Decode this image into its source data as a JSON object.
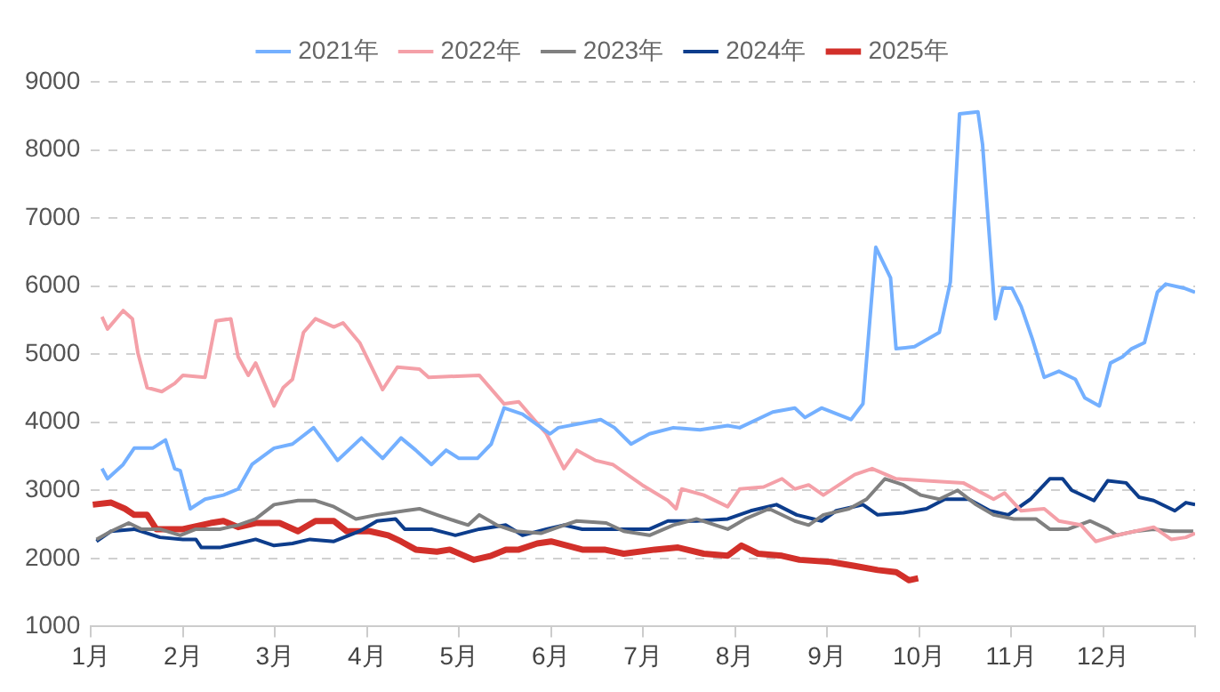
{
  "chart_data": {
    "type": "line",
    "xlim": [
      1,
      13
    ],
    "xticks": [
      {
        "value": 1,
        "label": "1月"
      },
      {
        "value": 2,
        "label": "2月"
      },
      {
        "value": 3,
        "label": "3月"
      },
      {
        "value": 4,
        "label": "4月"
      },
      {
        "value": 5,
        "label": "5月"
      },
      {
        "value": 6,
        "label": "6月"
      },
      {
        "value": 7,
        "label": "7月"
      },
      {
        "value": 8,
        "label": "8月"
      },
      {
        "value": 9,
        "label": "9月"
      },
      {
        "value": 10,
        "label": "10月"
      },
      {
        "value": 11,
        "label": "11月"
      },
      {
        "value": 12,
        "label": "12月"
      },
      {
        "value": 13,
        "label": null
      }
    ],
    "ylim": [
      1000,
      9000
    ],
    "yticks": [
      1000,
      2000,
      3000,
      4000,
      5000,
      6000,
      7000,
      8000,
      9000
    ],
    "grid": "y",
    "legend": "top",
    "marker": "none",
    "series": [
      {
        "name": "2021年",
        "color": "#74b0ff",
        "x": [
          1.12,
          1.18,
          1.35,
          1.47,
          1.67,
          1.81,
          1.91,
          1.97,
          2.08,
          2.24,
          2.44,
          2.6,
          2.75,
          2.99,
          3.19,
          3.42,
          3.52,
          3.68,
          3.94,
          4.17,
          4.37,
          4.53,
          4.7,
          4.86,
          5.0,
          5.2,
          5.35,
          5.49,
          5.69,
          5.99,
          6.08,
          6.54,
          6.69,
          6.87,
          7.07,
          7.33,
          7.62,
          7.92,
          8.05,
          8.41,
          8.65,
          8.76,
          8.94,
          9.26,
          9.39,
          9.53,
          9.69,
          9.75,
          9.95,
          10.22,
          10.34,
          10.44,
          10.64,
          10.69,
          10.83,
          10.91,
          11.01,
          11.11,
          11.23,
          11.36,
          11.52,
          11.7,
          11.8,
          11.96,
          12.08,
          12.21,
          12.31,
          12.45,
          12.59,
          12.68,
          12.88,
          13.0
        ],
        "values": [
          3320,
          3170,
          3380,
          3620,
          3620,
          3740,
          3320,
          3290,
          2730,
          2870,
          2930,
          3020,
          3380,
          3620,
          3680,
          3920,
          3740,
          3440,
          3770,
          3470,
          3770,
          3590,
          3380,
          3590,
          3470,
          3470,
          3680,
          4210,
          4120,
          3830,
          3920,
          4040,
          3920,
          3680,
          3830,
          3920,
          3890,
          3950,
          3920,
          4150,
          4210,
          4070,
          4210,
          4040,
          4270,
          6570,
          6120,
          5080,
          5110,
          5320,
          6060,
          8530,
          8560,
          8080,
          5520,
          5970,
          5970,
          5700,
          5230,
          4660,
          4750,
          4630,
          4360,
          4240,
          4870,
          4960,
          5080,
          5170,
          5910,
          6030,
          5970,
          5910
        ]
      },
      {
        "name": "2022年",
        "color": "#f4a0a8",
        "x": [
          1.12,
          1.18,
          1.35,
          1.45,
          1.51,
          1.61,
          1.77,
          1.91,
          2.0,
          2.24,
          2.36,
          2.52,
          2.6,
          2.71,
          2.79,
          2.99,
          3.09,
          3.19,
          3.31,
          3.44,
          3.64,
          3.74,
          3.92,
          4.17,
          4.33,
          4.57,
          4.67,
          5.22,
          5.49,
          5.65,
          5.95,
          6.14,
          6.28,
          6.48,
          6.67,
          6.99,
          7.27,
          7.36,
          7.42,
          7.66,
          7.92,
          8.05,
          8.31,
          8.51,
          8.65,
          8.8,
          8.96,
          9.3,
          9.49,
          9.75,
          10.08,
          10.48,
          10.81,
          10.93,
          11.11,
          11.36,
          11.52,
          11.76,
          11.92,
          12.15,
          12.35,
          12.55,
          12.74,
          12.9,
          13.0
        ],
        "values": [
          5550,
          5370,
          5640,
          5520,
          5020,
          4510,
          4450,
          4570,
          4690,
          4660,
          5490,
          5520,
          4960,
          4690,
          4870,
          4240,
          4510,
          4630,
          5320,
          5520,
          5400,
          5460,
          5170,
          4480,
          4810,
          4780,
          4660,
          4690,
          4270,
          4300,
          3830,
          3320,
          3590,
          3440,
          3380,
          3080,
          2850,
          2730,
          3020,
          2930,
          2760,
          3020,
          3050,
          3170,
          3020,
          3080,
          2930,
          3230,
          3320,
          3170,
          3140,
          3110,
          2870,
          2960,
          2700,
          2730,
          2550,
          2490,
          2250,
          2340,
          2400,
          2460,
          2280,
          2310,
          2370
        ]
      },
      {
        "name": "2023年",
        "color": "#808080",
        "x": [
          1.06,
          1.22,
          1.41,
          1.55,
          1.75,
          1.97,
          2.14,
          2.4,
          2.6,
          2.79,
          2.99,
          3.25,
          3.44,
          3.64,
          3.88,
          4.11,
          4.41,
          4.57,
          4.76,
          4.96,
          5.1,
          5.22,
          5.41,
          5.61,
          5.89,
          6.08,
          6.28,
          6.6,
          6.79,
          7.07,
          7.33,
          7.58,
          7.92,
          8.11,
          8.37,
          8.65,
          8.8,
          8.96,
          9.24,
          9.43,
          9.63,
          9.83,
          10.02,
          10.22,
          10.42,
          10.62,
          10.81,
          11.03,
          11.27,
          11.42,
          11.62,
          11.86,
          12.05,
          12.15,
          12.35,
          12.55,
          12.74,
          12.98
        ],
        "values": [
          2280,
          2400,
          2520,
          2430,
          2430,
          2340,
          2430,
          2430,
          2490,
          2580,
          2790,
          2850,
          2850,
          2760,
          2580,
          2640,
          2700,
          2730,
          2640,
          2550,
          2490,
          2640,
          2490,
          2400,
          2370,
          2460,
          2550,
          2520,
          2400,
          2340,
          2490,
          2580,
          2430,
          2580,
          2730,
          2550,
          2490,
          2640,
          2730,
          2870,
          3170,
          3080,
          2930,
          2870,
          3000,
          2790,
          2640,
          2580,
          2580,
          2430,
          2430,
          2550,
          2430,
          2340,
          2400,
          2430,
          2400,
          2400
        ]
      },
      {
        "name": "2024年",
        "color": "#0d3d8c",
        "x": [
          1.06,
          1.22,
          1.47,
          1.75,
          2.0,
          2.14,
          2.2,
          2.4,
          2.6,
          2.79,
          2.99,
          3.19,
          3.38,
          3.64,
          3.92,
          4.11,
          4.31,
          4.41,
          4.57,
          4.7,
          4.96,
          5.22,
          5.51,
          5.69,
          5.95,
          6.14,
          6.34,
          6.6,
          6.87,
          7.07,
          7.27,
          7.58,
          7.92,
          8.17,
          8.45,
          8.67,
          8.94,
          9.1,
          9.39,
          9.55,
          9.83,
          10.08,
          10.28,
          10.54,
          10.77,
          10.97,
          11.21,
          11.42,
          11.56,
          11.66,
          11.9,
          12.05,
          12.25,
          12.39,
          12.55,
          12.78,
          12.9,
          13.0
        ],
        "values": [
          2250,
          2400,
          2430,
          2310,
          2280,
          2280,
          2160,
          2160,
          2220,
          2280,
          2190,
          2220,
          2280,
          2250,
          2400,
          2550,
          2580,
          2430,
          2430,
          2430,
          2340,
          2430,
          2490,
          2340,
          2430,
          2490,
          2430,
          2430,
          2430,
          2430,
          2550,
          2550,
          2580,
          2700,
          2790,
          2640,
          2550,
          2700,
          2790,
          2640,
          2670,
          2730,
          2870,
          2870,
          2700,
          2640,
          2870,
          3170,
          3170,
          3000,
          2850,
          3140,
          3110,
          2900,
          2850,
          2700,
          2820,
          2790
        ]
      },
      {
        "name": "2025年",
        "color": "#d2302a",
        "x": [
          1.02,
          1.22,
          1.37,
          1.47,
          1.61,
          1.71,
          2.0,
          2.3,
          2.44,
          2.6,
          2.79,
          3.05,
          3.25,
          3.44,
          3.64,
          3.78,
          4.03,
          4.23,
          4.37,
          4.53,
          4.76,
          4.9,
          5.16,
          5.35,
          5.51,
          5.65,
          5.85,
          6.0,
          6.34,
          6.58,
          6.79,
          7.13,
          7.38,
          7.66,
          7.92,
          8.07,
          8.25,
          8.51,
          8.7,
          9.04,
          9.3,
          9.55,
          9.75,
          9.89,
          9.99
        ],
        "values": [
          2790,
          2820,
          2730,
          2640,
          2640,
          2430,
          2430,
          2520,
          2550,
          2460,
          2520,
          2520,
          2400,
          2550,
          2550,
          2400,
          2400,
          2340,
          2250,
          2130,
          2100,
          2130,
          1980,
          2040,
          2130,
          2130,
          2220,
          2250,
          2130,
          2130,
          2070,
          2130,
          2160,
          2070,
          2040,
          2190,
          2070,
          2040,
          1980,
          1950,
          1890,
          1830,
          1800,
          1680,
          1710
        ]
      }
    ]
  }
}
